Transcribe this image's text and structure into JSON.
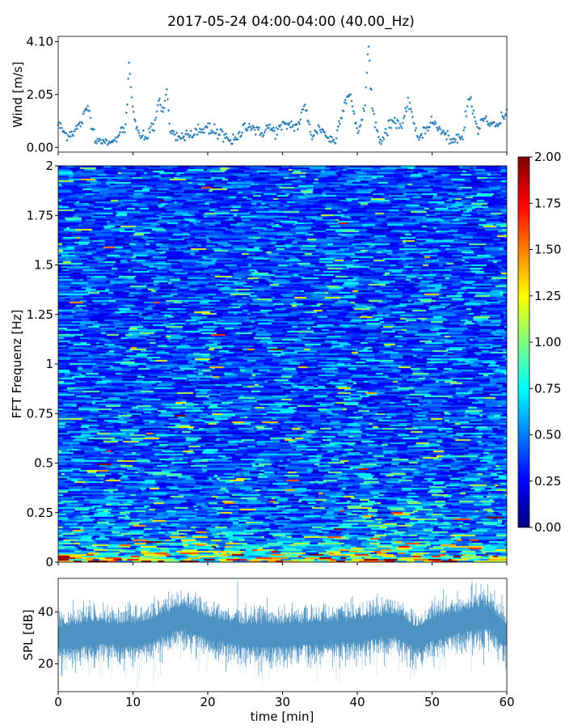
{
  "chart_data": [
    {
      "type": "scatter",
      "name": "wind",
      "title": "2017-05-24 04:00-04:00 (40.00_Hz)",
      "ylabel": "Wind [m/s]",
      "xlabel": "",
      "xlim": [
        0,
        60
      ],
      "ylim": [
        -0.18,
        4.3
      ],
      "yticks": [
        "0.00",
        "2.05",
        "4.10"
      ],
      "ytick_values": [
        0,
        2.05,
        4.1
      ],
      "xtick_values": [
        0,
        10,
        20,
        30,
        40,
        50,
        60
      ],
      "color": "#1f77b4",
      "x_minutes": [
        0,
        1,
        2,
        3,
        4,
        5,
        6,
        7,
        8,
        9,
        9.5,
        10,
        11,
        12,
        13,
        13.5,
        14,
        14.5,
        15,
        16,
        17,
        18,
        19,
        20,
        21,
        22,
        23,
        24,
        25,
        26,
        27,
        28,
        29,
        30,
        31,
        32,
        33,
        34,
        35,
        36,
        37,
        38,
        39,
        40,
        41,
        41.5,
        42,
        43,
        44,
        45,
        46,
        47,
        48,
        49,
        50,
        51,
        52,
        53,
        54,
        55,
        56,
        57,
        58,
        59,
        60
      ],
      "wind_ms": [
        0.9,
        0.5,
        0.6,
        0.9,
        1.6,
        0.3,
        0.2,
        0.2,
        0.5,
        0.8,
        3.2,
        1.3,
        0.4,
        0.5,
        1.0,
        2.0,
        1.2,
        2.3,
        0.6,
        0.4,
        0.5,
        0.5,
        0.6,
        0.7,
        0.6,
        0.5,
        0.2,
        0.3,
        0.9,
        0.8,
        0.5,
        0.8,
        0.6,
        0.8,
        0.9,
        0.8,
        1.6,
        0.4,
        0.8,
        0.4,
        0.2,
        1.5,
        2.2,
        0.5,
        1.5,
        4.0,
        1.5,
        0.2,
        0.7,
        1.1,
        0.8,
        1.8,
        0.3,
        0.7,
        1.0,
        0.7,
        0.4,
        0.2,
        0.4,
        2.1,
        0.7,
        1.2,
        0.8,
        1.0,
        1.4
      ]
    },
    {
      "type": "heatmap",
      "name": "spectrogram",
      "ylabel": "FFT Frequenz [Hz]",
      "xlim": [
        0,
        60
      ],
      "ylim": [
        0,
        2
      ],
      "yticks": [
        "0",
        "0.25",
        "0.5",
        "0.75",
        "1",
        "1.25",
        "1.5",
        "1.75",
        "2"
      ],
      "ytick_values": [
        0,
        0.25,
        0.5,
        0.75,
        1,
        1.25,
        1.5,
        1.75,
        2
      ],
      "colormap": "jet",
      "clim": [
        0,
        2
      ],
      "colorbar_ticks": [
        "0.00",
        "0.25",
        "0.50",
        "0.75",
        "1.00",
        "1.25",
        "1.50",
        "1.75",
        "2.00"
      ],
      "colorbar_tick_values": [
        0,
        0.25,
        0.5,
        0.75,
        1,
        1.25,
        1.5,
        1.75,
        2
      ],
      "freq_profile_hz": [
        0,
        0.03,
        0.06,
        0.1,
        0.15,
        0.25,
        0.5,
        1.0,
        1.5,
        2.0
      ],
      "mean_level": [
        1.3,
        0.9,
        0.75,
        0.6,
        0.5,
        0.45,
        0.4,
        0.38,
        0.37,
        0.36
      ]
    },
    {
      "type": "area",
      "name": "spl",
      "ylabel": "SPL [dB]",
      "xlabel": "time [min]",
      "xlim": [
        0,
        60
      ],
      "ylim": [
        9.3,
        53
      ],
      "yticks": [
        "20",
        "40"
      ],
      "ytick_values": [
        20,
        40
      ],
      "xticks": [
        "0",
        "10",
        "20",
        "30",
        "40",
        "50",
        "60"
      ],
      "xtick_values": [
        0,
        10,
        20,
        30,
        40,
        50,
        60
      ],
      "color": "#1f77b4",
      "x_minutes": [
        0,
        5,
        10,
        13.5,
        16.7,
        20,
        25,
        30,
        35,
        40,
        45,
        48,
        50,
        55,
        57.5,
        60
      ],
      "mean_db": [
        30,
        32,
        31,
        34,
        38,
        34,
        31,
        31,
        32,
        33,
        35,
        30,
        33,
        37,
        38,
        31
      ]
    }
  ]
}
